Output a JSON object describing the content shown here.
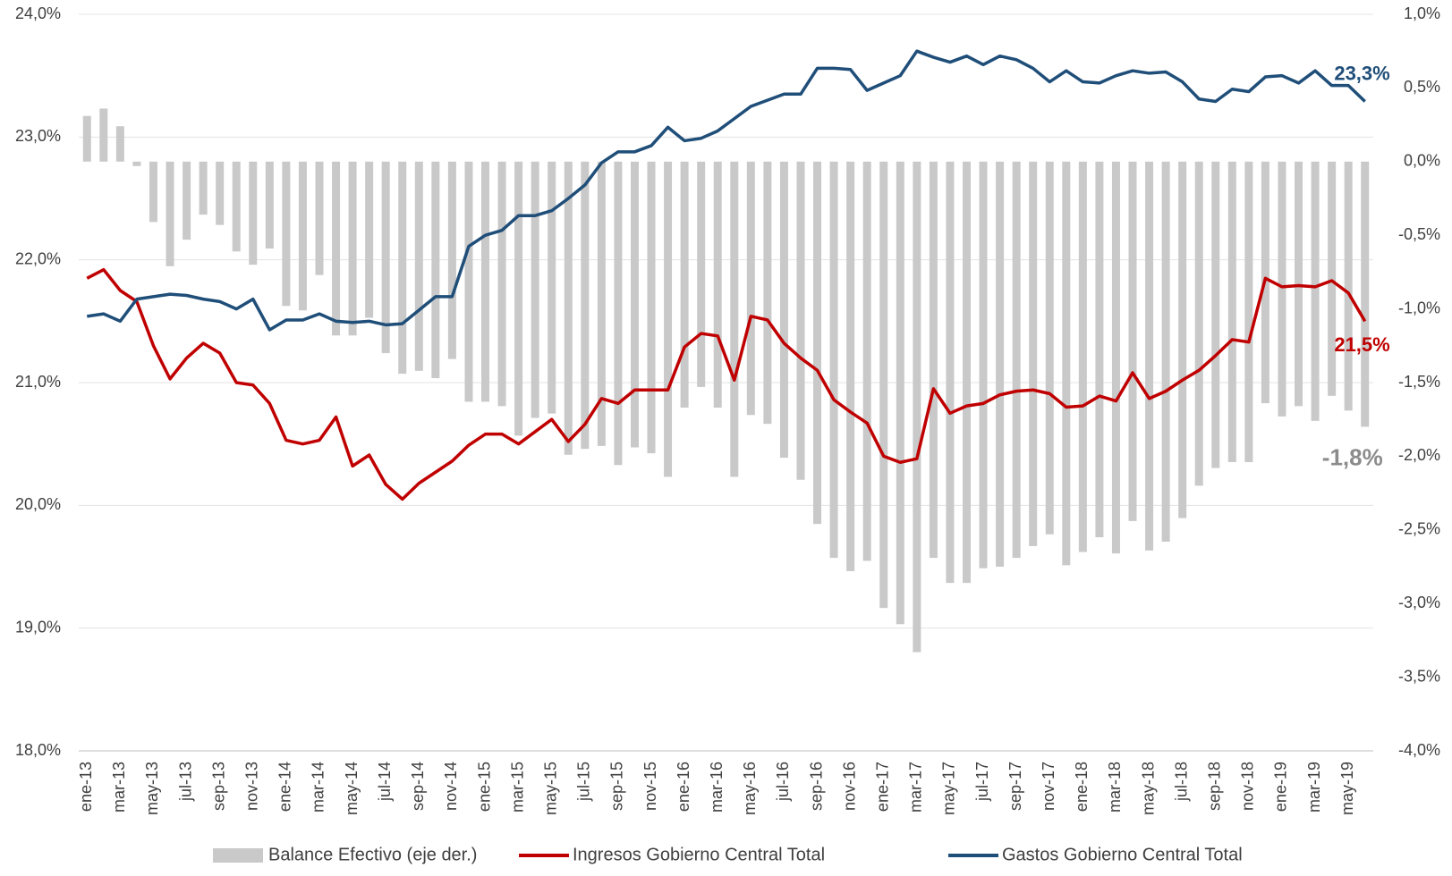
{
  "chart_data": {
    "type": "combo",
    "legend": "bottom",
    "grid": true,
    "categories": [
      "ene-13",
      null,
      "mar-13",
      null,
      "may-13",
      null,
      "jul-13",
      null,
      "sep-13",
      null,
      "nov-13",
      null,
      "ene-14",
      null,
      "mar-14",
      null,
      "may-14",
      null,
      "jul-14",
      null,
      "sep-14",
      null,
      "nov-14",
      null,
      "ene-15",
      null,
      "mar-15",
      null,
      "may-15",
      null,
      "jul-15",
      null,
      "sep-15",
      null,
      "nov-15",
      null,
      "ene-16",
      null,
      "mar-16",
      null,
      "may-16",
      null,
      "jul-16",
      null,
      "sep-16",
      null,
      "nov-16",
      null,
      "ene-17",
      null,
      "mar-17",
      null,
      "may-17",
      null,
      "jul-17",
      null,
      "sep-17",
      null,
      "nov-17",
      null,
      "ene-18",
      null,
      "mar-18",
      null,
      "may-18",
      null,
      "jul-18",
      null,
      "sep-18",
      null,
      "nov-18",
      null,
      "ene-19",
      null,
      "mar-19",
      null,
      "may-19",
      null
    ],
    "ylim": [
      18,
      24
    ],
    "yticks": [
      {
        "value": 18,
        "label": "18,0%"
      },
      {
        "value": 19,
        "label": "19,0%"
      },
      {
        "value": 20,
        "label": "20,0%"
      },
      {
        "value": 21,
        "label": "21,0%"
      },
      {
        "value": 22,
        "label": "22,0%"
      },
      {
        "value": 23,
        "label": "23,0%"
      },
      {
        "value": 24,
        "label": "24,0%"
      }
    ],
    "y2lim": [
      -4,
      1
    ],
    "y2ticks": [
      {
        "value": -4,
        "label": "-4,0%"
      },
      {
        "value": -3.5,
        "label": "-3,5%"
      },
      {
        "value": -3,
        "label": "-3,0%"
      },
      {
        "value": -2.5,
        "label": "-2,5%"
      },
      {
        "value": -2,
        "label": "-2,0%"
      },
      {
        "value": -1.5,
        "label": "-1,5%"
      },
      {
        "value": -1,
        "label": "-1,0%"
      },
      {
        "value": -0.5,
        "label": "-0,5%"
      },
      {
        "value": 0,
        "label": "0,0%"
      },
      {
        "value": 0.5,
        "label": "0,5%"
      },
      {
        "value": 1,
        "label": "1,0%"
      }
    ],
    "series": [
      {
        "name": "Balance Efectivo (eje der.)",
        "type": "bar",
        "axis": "y2",
        "color": "#c9c9c9",
        "values": [
          0.31,
          0.36,
          0.24,
          -0.03,
          -0.41,
          -0.71,
          -0.53,
          -0.36,
          -0.43,
          -0.61,
          -0.7,
          -0.59,
          -0.98,
          -1.01,
          -0.77,
          -1.18,
          -1.18,
          -1.06,
          -1.3,
          -1.44,
          -1.42,
          -1.47,
          -1.34,
          -1.63,
          -1.63,
          -1.66,
          -1.86,
          -1.74,
          -1.71,
          -1.99,
          -1.95,
          -1.93,
          -2.06,
          -1.94,
          -1.98,
          -2.14,
          -1.67,
          -1.53,
          -1.67,
          -2.14,
          -1.72,
          -1.78,
          -2.01,
          -2.16,
          -2.46,
          -2.69,
          -2.78,
          -2.71,
          -3.03,
          -3.14,
          -3.33,
          -2.69,
          -2.86,
          -2.86,
          -2.76,
          -2.75,
          -2.69,
          -2.61,
          -2.53,
          -2.74,
          -2.65,
          -2.55,
          -2.66,
          -2.44,
          -2.64,
          -2.58,
          -2.42,
          -2.2,
          -2.08,
          -2.04,
          -2.04,
          -1.64,
          -1.73,
          -1.66,
          -1.76,
          -1.59,
          -1.69,
          -1.8
        ],
        "value_labels": [
          null,
          null,
          null,
          null,
          null,
          null,
          null,
          null,
          null,
          null,
          null,
          null,
          null,
          null,
          null,
          null,
          null,
          null,
          null,
          null,
          null,
          null,
          null,
          null,
          null,
          null,
          null,
          null,
          null,
          null,
          null,
          null,
          null,
          null,
          null,
          null,
          null,
          null,
          null,
          null,
          null,
          null,
          null,
          null,
          null,
          null,
          null,
          null,
          null,
          null,
          null,
          null,
          null,
          null,
          null,
          null,
          null,
          null,
          null,
          null,
          null,
          null,
          null,
          null,
          null,
          null,
          null,
          null,
          null,
          null,
          null,
          null,
          null,
          null,
          null,
          null,
          null,
          "-1,8%"
        ]
      },
      {
        "name": "Ingresos Gobierno Central Total",
        "type": "line",
        "color": "#c00000",
        "values": [
          21.85,
          21.92,
          21.75,
          21.66,
          21.3,
          21.03,
          21.2,
          21.32,
          21.24,
          21.0,
          20.98,
          20.83,
          20.53,
          20.5,
          20.53,
          20.72,
          20.32,
          20.41,
          20.17,
          20.05,
          20.18,
          20.27,
          20.36,
          20.49,
          20.58,
          20.58,
          20.5,
          20.6,
          20.7,
          20.52,
          20.66,
          20.87,
          20.83,
          20.94,
          20.94,
          20.94,
          21.29,
          21.4,
          21.38,
          21.02,
          21.54,
          21.51,
          21.32,
          21.2,
          21.1,
          20.86,
          20.76,
          20.67,
          20.4,
          20.35,
          20.38,
          20.95,
          20.75,
          20.81,
          20.83,
          20.9,
          20.93,
          20.94,
          20.91,
          20.8,
          20.81,
          20.89,
          20.85,
          21.08,
          20.87,
          20.93,
          21.02,
          21.1,
          21.22,
          21.35,
          21.33,
          21.85,
          21.78,
          21.79,
          21.78,
          21.83,
          21.73,
          21.5
        ],
        "value_labels": [
          null,
          null,
          null,
          null,
          null,
          null,
          null,
          null,
          null,
          null,
          null,
          null,
          null,
          null,
          null,
          null,
          null,
          null,
          null,
          null,
          null,
          null,
          null,
          null,
          null,
          null,
          null,
          null,
          null,
          null,
          null,
          null,
          null,
          null,
          null,
          null,
          null,
          null,
          null,
          null,
          null,
          null,
          null,
          null,
          null,
          null,
          null,
          null,
          null,
          null,
          null,
          null,
          null,
          null,
          null,
          null,
          null,
          null,
          null,
          null,
          null,
          null,
          null,
          null,
          null,
          null,
          null,
          null,
          null,
          null,
          null,
          null,
          null,
          null,
          null,
          null,
          null,
          "21,5%"
        ]
      },
      {
        "name": "Gastos Gobierno Central Total",
        "type": "line",
        "color": "#1f4e79",
        "values": [
          21.54,
          21.56,
          21.5,
          21.68,
          21.7,
          21.72,
          21.71,
          21.68,
          21.66,
          21.6,
          21.68,
          21.43,
          21.51,
          21.51,
          21.56,
          21.5,
          21.49,
          21.5,
          21.47,
          21.48,
          21.59,
          21.7,
          21.7,
          22.11,
          22.2,
          22.24,
          22.36,
          22.36,
          22.4,
          22.5,
          22.61,
          22.79,
          22.88,
          22.88,
          22.93,
          23.08,
          22.97,
          22.99,
          23.05,
          23.15,
          23.25,
          23.3,
          23.35,
          23.35,
          23.56,
          23.56,
          23.55,
          23.38,
          23.44,
          23.5,
          23.7,
          23.65,
          23.61,
          23.66,
          23.59,
          23.66,
          23.63,
          23.56,
          23.45,
          23.54,
          23.45,
          23.44,
          23.5,
          23.54,
          23.52,
          23.53,
          23.45,
          23.31,
          23.29,
          23.39,
          23.37,
          23.49,
          23.5,
          23.44,
          23.54,
          23.42,
          23.42,
          23.29
        ],
        "value_labels": [
          null,
          null,
          null,
          null,
          null,
          null,
          null,
          null,
          null,
          null,
          null,
          null,
          null,
          null,
          null,
          null,
          null,
          null,
          null,
          null,
          null,
          null,
          null,
          null,
          null,
          null,
          null,
          null,
          null,
          null,
          null,
          null,
          null,
          null,
          null,
          null,
          null,
          null,
          null,
          null,
          null,
          null,
          null,
          null,
          null,
          null,
          null,
          null,
          null,
          null,
          null,
          null,
          null,
          null,
          null,
          null,
          null,
          null,
          null,
          null,
          null,
          null,
          null,
          null,
          null,
          null,
          null,
          null,
          null,
          null,
          null,
          null,
          null,
          null,
          null,
          null,
          null,
          "23,3%"
        ]
      }
    ]
  }
}
